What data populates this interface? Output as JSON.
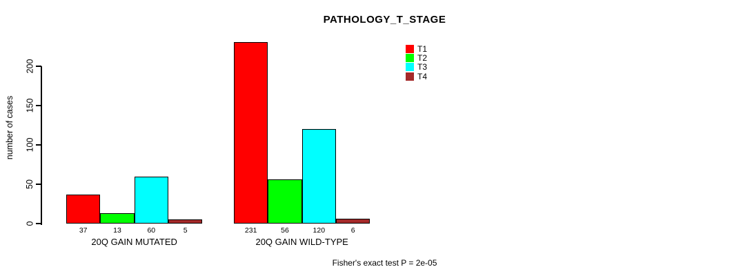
{
  "chart_data": {
    "type": "bar",
    "title": "PATHOLOGY_T_STAGE",
    "ylabel": "number of cases",
    "xlabel": "",
    "categories": [
      "20Q GAIN MUTATED",
      "20Q GAIN WILD-TYPE"
    ],
    "series": [
      {
        "name": "T1",
        "color": "#FF0000",
        "values": [
          37,
          231
        ]
      },
      {
        "name": "T2",
        "color": "#00FF00",
        "values": [
          13,
          56
        ]
      },
      {
        "name": "T3",
        "color": "#00FFFF",
        "values": [
          60,
          120
        ]
      },
      {
        "name": "T4",
        "color": "#A52A2A",
        "values": [
          5,
          6
        ]
      }
    ],
    "bar_value_labels": [
      [
        37,
        13,
        60,
        5
      ],
      [
        231,
        56,
        120,
        6
      ]
    ],
    "yticks": [
      0,
      50,
      100,
      150,
      200
    ],
    "ylim": [
      0,
      232
    ],
    "grid": false,
    "legend_position": "top-right",
    "annotation": "Fisher's exact test P = 2e-05",
    "background_color": "#FFFFFF",
    "axis_color": "#000000"
  }
}
